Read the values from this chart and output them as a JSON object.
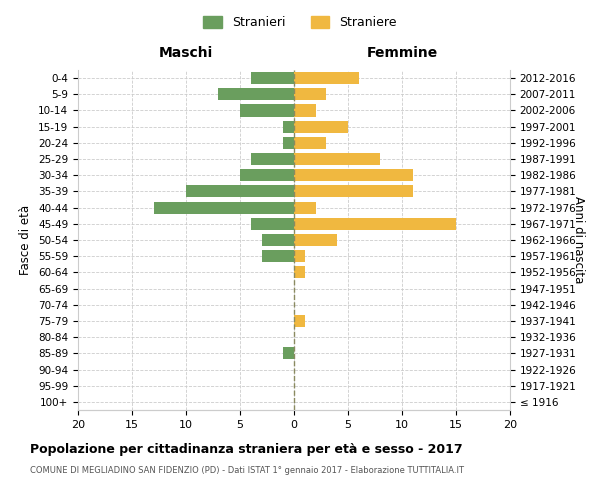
{
  "age_groups": [
    "100+",
    "95-99",
    "90-94",
    "85-89",
    "80-84",
    "75-79",
    "70-74",
    "65-69",
    "60-64",
    "55-59",
    "50-54",
    "45-49",
    "40-44",
    "35-39",
    "30-34",
    "25-29",
    "20-24",
    "15-19",
    "10-14",
    "5-9",
    "0-4"
  ],
  "birth_years": [
    "≤ 1916",
    "1917-1921",
    "1922-1926",
    "1927-1931",
    "1932-1936",
    "1937-1941",
    "1942-1946",
    "1947-1951",
    "1952-1956",
    "1957-1961",
    "1962-1966",
    "1967-1971",
    "1972-1976",
    "1977-1981",
    "1982-1986",
    "1987-1991",
    "1992-1996",
    "1997-2001",
    "2002-2006",
    "2007-2011",
    "2012-2016"
  ],
  "males": [
    0,
    0,
    0,
    1,
    0,
    0,
    0,
    0,
    0,
    3,
    3,
    4,
    13,
    10,
    5,
    4,
    1,
    1,
    5,
    7,
    4
  ],
  "females": [
    0,
    0,
    0,
    0,
    0,
    1,
    0,
    0,
    1,
    1,
    4,
    15,
    2,
    11,
    11,
    8,
    3,
    5,
    2,
    3,
    6
  ],
  "male_color": "#6a9e5e",
  "female_color": "#f0b840",
  "title": "Popolazione per cittadinanza straniera per età e sesso - 2017",
  "subtitle": "COMUNE DI MEGLIADINO SAN FIDENZIO (PD) - Dati ISTAT 1° gennaio 2017 - Elaborazione TUTTITALIA.IT",
  "xlabel_left": "Maschi",
  "xlabel_right": "Femmine",
  "ylabel_left": "Fasce di età",
  "ylabel_right": "Anni di nascita",
  "legend_male": "Stranieri",
  "legend_female": "Straniere",
  "xlim": 20,
  "background_color": "#ffffff",
  "grid_color": "#cccccc"
}
